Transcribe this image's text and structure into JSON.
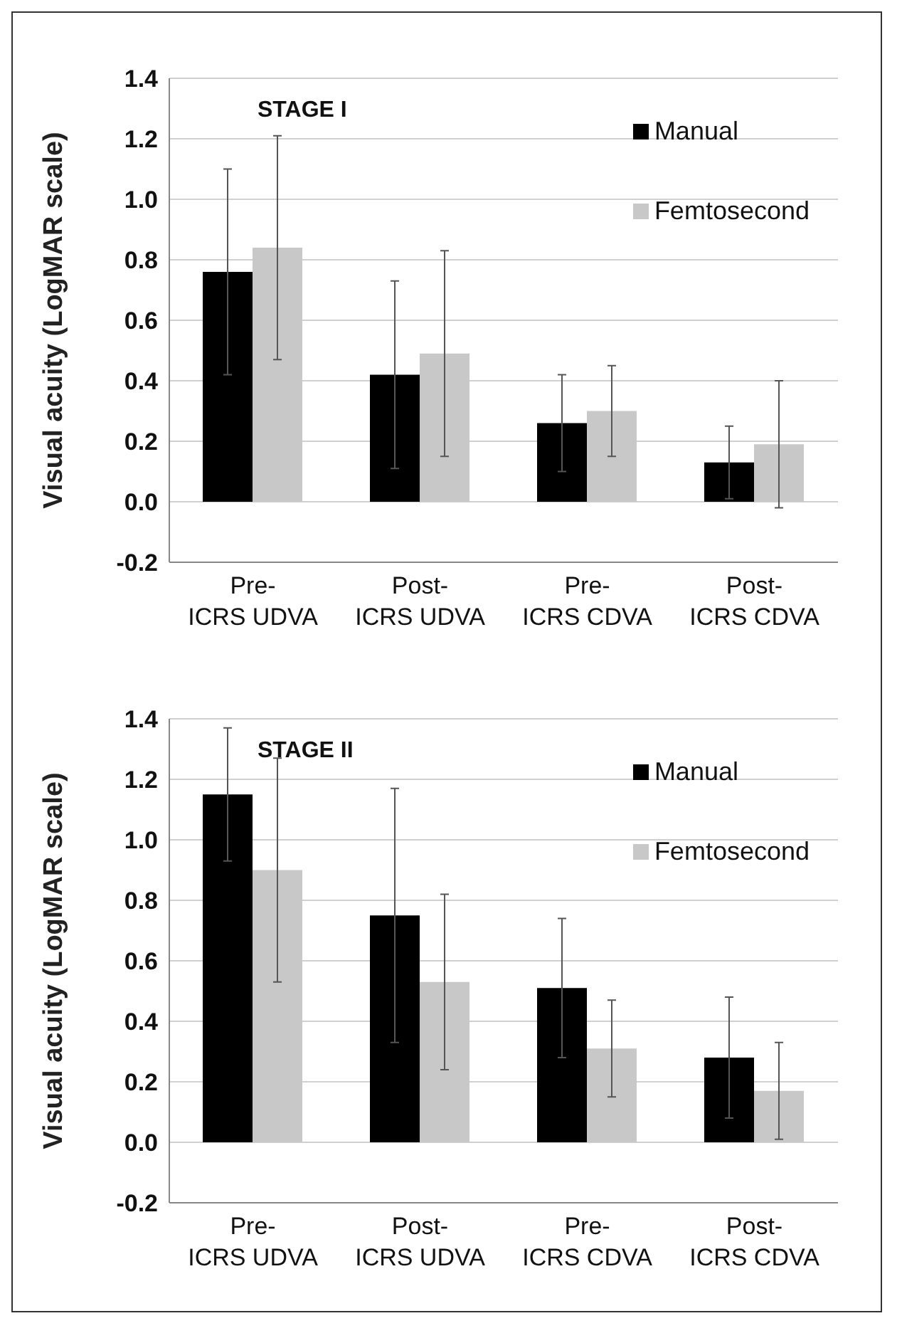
{
  "chart_data": [
    {
      "type": "bar",
      "ylabel": "Visual acuity (LogMAR scale)",
      "annotations": [
        "STAGE I"
      ],
      "categories": [
        "Pre-\nICRS UDVA",
        "Post-\nICRS UDVA",
        "Pre-\nICRS CDVA",
        "Post-\nICRS CDVA"
      ],
      "series": [
        {
          "name": "Manual",
          "color": "#000000",
          "values": [
            0.76,
            0.42,
            0.26,
            0.13
          ],
          "errors": [
            0.34,
            0.31,
            0.16,
            0.12
          ]
        },
        {
          "name": "Femtosecond",
          "color": "#c8c8c8",
          "values": [
            0.84,
            0.49,
            0.3,
            0.19
          ],
          "errors": [
            0.37,
            0.34,
            0.15,
            0.21
          ]
        }
      ],
      "ylim": [
        -0.2,
        1.4
      ],
      "yticks": [
        {
          "value": -0.2,
          "label": "-0.2"
        },
        {
          "value": 0,
          "label": "0.0"
        },
        {
          "value": 0.2,
          "label": "0.2"
        },
        {
          "value": 0.4,
          "label": "0.4"
        },
        {
          "value": 0.6,
          "label": "0.6"
        },
        {
          "value": 0.8,
          "label": "0.8"
        },
        {
          "value": 1,
          "label": "1.0"
        },
        {
          "value": 1.2,
          "label": "1.2"
        },
        {
          "value": 1.4,
          "label": "1.4"
        }
      ],
      "grid": "y",
      "legend": "top right"
    },
    {
      "type": "bar",
      "ylabel": "Visual acuity (LogMAR scale)",
      "annotations": [
        "STAGE II"
      ],
      "categories": [
        "Pre-\nICRS UDVA",
        "Post-\nICRS UDVA",
        "Pre-\nICRS CDVA",
        "Post-\nICRS CDVA"
      ],
      "series": [
        {
          "name": "Manual",
          "color": "#000000",
          "values": [
            1.15,
            0.75,
            0.51,
            0.28
          ],
          "errors": [
            0.22,
            0.42,
            0.23,
            0.2
          ]
        },
        {
          "name": "Femtosecond",
          "color": "#c8c8c8",
          "values": [
            0.9,
            0.53,
            0.31,
            0.17
          ],
          "errors": [
            0.37,
            0.29,
            0.16,
            0.16
          ]
        }
      ],
      "ylim": [
        -0.2,
        1.4
      ],
      "yticks": [
        {
          "value": -0.2,
          "label": "-0.2"
        },
        {
          "value": 0,
          "label": "0.0"
        },
        {
          "value": 0.2,
          "label": "0.2"
        },
        {
          "value": 0.4,
          "label": "0.4"
        },
        {
          "value": 0.6,
          "label": "0.6"
        },
        {
          "value": 0.8,
          "label": "0.8"
        },
        {
          "value": 1,
          "label": "1.0"
        },
        {
          "value": 1.2,
          "label": "1.2"
        },
        {
          "value": 1.4,
          "label": "1.4"
        }
      ],
      "grid": "y",
      "legend": "top right"
    }
  ]
}
